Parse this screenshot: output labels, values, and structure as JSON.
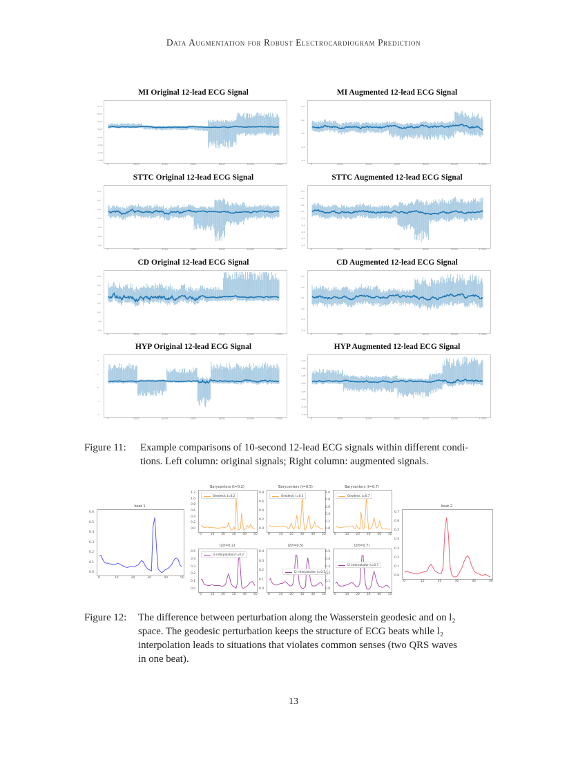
{
  "header": {
    "running_title": "Data Augmentation for Robust Electrocardiogram Prediction"
  },
  "figure11": {
    "panels": [
      {
        "title": "MI Original 12-lead ECG Signal",
        "yticks": [
          "0.75",
          "0.50",
          "0.25",
          "0.00",
          "-0.25",
          "-0.50",
          "-0.75",
          "-1.00"
        ],
        "xticks": [
          "0",
          "2000",
          "4000",
          "6000",
          "8000",
          "10000",
          "12000"
        ]
      },
      {
        "title": "MI Augmented 12-lead ECG Signal",
        "yticks": [
          "0.4",
          "0.2",
          "0.0",
          "-0.2",
          "-0.4"
        ],
        "xticks": [
          "0",
          "2000",
          "4000",
          "6000",
          "8000",
          "10000",
          "12000"
        ]
      },
      {
        "title": "STTC Original 12-lead ECG Signal",
        "yticks": [
          "0.4",
          "0.2",
          "0.0",
          "-0.2",
          "-0.4",
          "-0.6",
          "-0.8"
        ],
        "xticks": [
          "0",
          "2000",
          "4000",
          "6000",
          "8000",
          "10000",
          "12000"
        ]
      },
      {
        "title": "STTC Augmented 12-lead ECG Signal",
        "yticks": [
          "0.3",
          "0.2",
          "0.1",
          "0.0",
          "-0.1",
          "-0.2",
          "-0.3",
          "-0.4",
          "-0.5"
        ],
        "xticks": [
          "0",
          "2000",
          "4000",
          "6000",
          "8000",
          "10000",
          "12000"
        ]
      },
      {
        "title": "CD Original 12-lead ECG Signal",
        "yticks": [
          "0.8",
          "0.6",
          "0.4",
          "0.2",
          "0.0",
          "-0.2",
          "-0.4"
        ],
        "xticks": [
          "0",
          "2000",
          "4000",
          "6000",
          "8000",
          "10000",
          "12000"
        ]
      },
      {
        "title": "CD Augmented 12-lead ECG Signal",
        "yticks": [
          "0.3",
          "0.2",
          "0.1",
          "0.0",
          "-0.1",
          "-0.2"
        ],
        "xticks": [
          "0",
          "2000",
          "4000",
          "6000",
          "8000",
          "10000",
          "12000"
        ]
      },
      {
        "title": "HYP Original 12-lead ECG Signal",
        "yticks": [
          "2",
          "1",
          "0",
          "-1",
          "-2"
        ],
        "xticks": [
          "0",
          "2000",
          "4000",
          "6000",
          "8000",
          "10000",
          "12000"
        ]
      },
      {
        "title": "HYP Augmented 12-lead ECG Signal",
        "yticks": [
          "1.25",
          "1.00",
          "0.75",
          "0.50",
          "0.25",
          "0.00",
          "-0.25",
          "-0.50"
        ],
        "xticks": [
          "0",
          "2000",
          "4000",
          "6000",
          "8000",
          "10000",
          "12000"
        ]
      }
    ],
    "caption_label": "Figure 11:",
    "caption_text": "Example comparisons of 10-second 12-lead ECG signals within different conditions. Left column: original signals; Right column: augmented signals.",
    "caption_line1": "Example comparisons of 10-second 12-lead ECG signals within different condi-",
    "caption_line2": "tions. Left column: original signals; Right column: augmented signals."
  },
  "figure12": {
    "beat1": {
      "title": "beat 1",
      "yticks": [
        "0.6",
        "0.5",
        "0.4",
        "0.3",
        "0.2",
        "0.1",
        "0.0"
      ],
      "xticks": [
        "0",
        "10",
        "20",
        "30",
        "40",
        "50"
      ]
    },
    "beat2": {
      "title": "beat 2",
      "yticks": [
        "0.7",
        "0.6",
        "0.5",
        "0.4",
        "0.3",
        "0.2",
        "0.1",
        "0.0"
      ],
      "xticks": [
        "0",
        "10",
        "20",
        "30",
        "40",
        "50"
      ]
    },
    "barycenters": [
      {
        "title": "Barycenters (t=0.2)",
        "legend": "Geodesic t=0.2",
        "yticks": [
          "1.2",
          "1.0",
          "0.8",
          "0.6",
          "0.4",
          "0.2",
          "0.0"
        ]
      },
      {
        "title": "Barycenters (t=0.5)",
        "legend": "Geodesic t=0.5",
        "yticks": [
          "0.8",
          "0.6",
          "0.4",
          "0.2",
          "0.0"
        ]
      },
      {
        "title": "Barycenters (t=0.7)",
        "legend": "Geodesic t=0.7",
        "yticks": [
          "1.0",
          "0.8",
          "0.6",
          "0.4",
          "0.2",
          "0.0"
        ]
      }
    ],
    "l2": [
      {
        "title": "l2(t=0.2)",
        "legend": "l2 interpolation t=0.2",
        "yticks": [
          "0.5",
          "0.4",
          "0.3",
          "0.2",
          "0.1",
          "0.0"
        ]
      },
      {
        "title": "l2(t=0.5)",
        "legend": "l2 interpolation t=0.5",
        "yticks": [
          "0.4",
          "0.3",
          "0.2",
          "0.1",
          "0.0"
        ]
      },
      {
        "title": "l2(t=0.7)",
        "legend": "l2 interpolation t=0.7",
        "yticks": [
          "0.5",
          "0.4",
          "0.3",
          "0.2",
          "0.1",
          "0.0"
        ]
      }
    ],
    "xticks": [
      "0",
      "10",
      "20",
      "30",
      "40",
      "50"
    ],
    "caption_label": "Figure 12:",
    "caption_lines": [
      "The difference between perturbation along the Wasserstein geodesic and on l₂",
      "space.  The geodesic perturbation keeps the structure of ECG beats while l₂",
      "interpolation leads to situations that violates common senses (two QRS waves",
      "in one beat)."
    ]
  },
  "colors": {
    "ecg_blue": "#1f77b4",
    "beat1_blue": "#3a3aff",
    "geodesic_orange": "#ffa94d",
    "l2_purple": "#9b3a9b",
    "beat2_red": "#e8455a"
  },
  "page_number": "13"
}
